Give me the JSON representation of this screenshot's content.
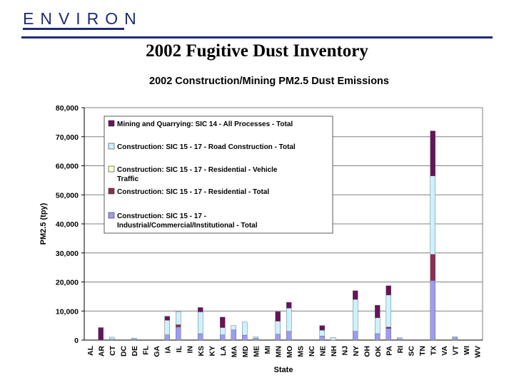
{
  "header": {
    "logo_text": "ENVIRON",
    "title": "2002 Fugitive Dust Inventory"
  },
  "colors": {
    "brand": "#1f2a78",
    "Mining and Quarrying": "#66145a",
    "Road Construction": "#ccf2ff",
    "Residential Vehicle Traffic": "#ffffcc",
    "Residential": "#8c2e55",
    "Industrial/Commercial/Institutional": "#9c9cf2"
  },
  "chart_data": {
    "type": "bar",
    "stacked": true,
    "title": "2002 Construction/Mining PM2.5 Dust Emissions",
    "xlabel": "State",
    "ylabel": "PM2.5 (tpy)",
    "ylim": [
      0,
      80000
    ],
    "yticks": [
      0,
      10000,
      20000,
      30000,
      40000,
      50000,
      60000,
      70000,
      80000
    ],
    "ytick_labels": [
      "0",
      "10,000",
      "20,000",
      "30,000",
      "40,000",
      "50,000",
      "60,000",
      "70,000",
      "80,000"
    ],
    "grid": "horizontal",
    "legend_position": "top-left",
    "categories": [
      "AL",
      "AR",
      "CT",
      "DC",
      "DE",
      "FL",
      "GA",
      "IA",
      "IL",
      "IN",
      "KS",
      "KY",
      "LA",
      "MA",
      "MD",
      "ME",
      "MI",
      "MN",
      "MO",
      "MS",
      "NC",
      "NE",
      "NH",
      "NJ",
      "NY",
      "OH",
      "OK",
      "PA",
      "RI",
      "SC",
      "TN",
      "TX",
      "VA",
      "VT",
      "WI",
      "WV"
    ],
    "series": [
      {
        "name": "Construction: SIC 15 - 17 - Industrial/Commercial/Institutional - Total",
        "color": "#9c9cf2",
        "values": [
          0,
          0,
          300,
          0,
          300,
          0,
          0,
          1800,
          4500,
          0,
          2200,
          0,
          1800,
          3500,
          1700,
          600,
          0,
          2000,
          3000,
          0,
          0,
          1400,
          0,
          0,
          3000,
          0,
          2200,
          4000,
          400,
          0,
          0,
          20500,
          0,
          800,
          0,
          0
        ]
      },
      {
        "name": "Construction: SIC 15 - 17 - Residential - Total",
        "color": "#8c2e55",
        "values": [
          0,
          0,
          0,
          0,
          0,
          0,
          0,
          0,
          800,
          0,
          0,
          0,
          0,
          0,
          0,
          0,
          0,
          0,
          0,
          0,
          0,
          0,
          0,
          0,
          0,
          0,
          0,
          500,
          0,
          0,
          0,
          9000,
          0,
          0,
          0,
          0
        ]
      },
      {
        "name": "Construction: SIC 15 - 17 - Residential - Vehicle Traffic",
        "color": "#ffffcc",
        "values": [
          0,
          0,
          0,
          0,
          0,
          0,
          0,
          0,
          0,
          0,
          0,
          0,
          0,
          0,
          0,
          0,
          0,
          0,
          0,
          0,
          0,
          0,
          0,
          0,
          0,
          0,
          0,
          0,
          0,
          0,
          0,
          0,
          0,
          0,
          0,
          0
        ]
      },
      {
        "name": "Construction: SIC 15 - 17 - Road Construction - Total",
        "color": "#ccf2ff",
        "values": [
          0,
          0,
          700,
          0,
          400,
          0,
          0,
          5000,
          4500,
          0,
          7500,
          0,
          2500,
          1500,
          4500,
          500,
          0,
          4500,
          8000,
          0,
          0,
          2000,
          900,
          0,
          11000,
          0,
          5500,
          11000,
          500,
          0,
          0,
          27000,
          0,
          400,
          0,
          0
        ]
      },
      {
        "name": "Mining and Quarrying: SIC 14 - All Processes - Total",
        "color": "#66145a",
        "values": [
          0,
          4300,
          0,
          0,
          0,
          0,
          0,
          1400,
          0,
          0,
          1500,
          0,
          3600,
          0,
          0,
          0,
          0,
          3300,
          2000,
          0,
          0,
          1600,
          0,
          0,
          3000,
          0,
          4300,
          3200,
          0,
          0,
          0,
          15500,
          0,
          0,
          0,
          0
        ]
      }
    ]
  }
}
